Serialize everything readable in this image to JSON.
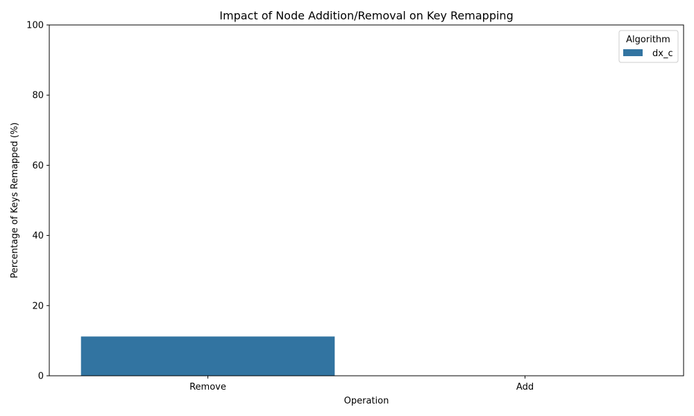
{
  "chart_data": {
    "type": "bar",
    "title": "Impact of Node Addition/Removal on Key Remapping",
    "xlabel": "Operation",
    "ylabel": "Percentage of Keys Remapped (%)",
    "categories": [
      "Remove",
      "Add"
    ],
    "series": [
      {
        "name": "dx_c",
        "values": [
          11.2,
          0
        ],
        "color": "#3274a1"
      }
    ],
    "ylim": [
      0,
      100
    ],
    "yticks": [
      0,
      20,
      40,
      60,
      80,
      100
    ],
    "grid": false,
    "legend": {
      "title": "Algorithm",
      "placement": "top-right"
    }
  }
}
